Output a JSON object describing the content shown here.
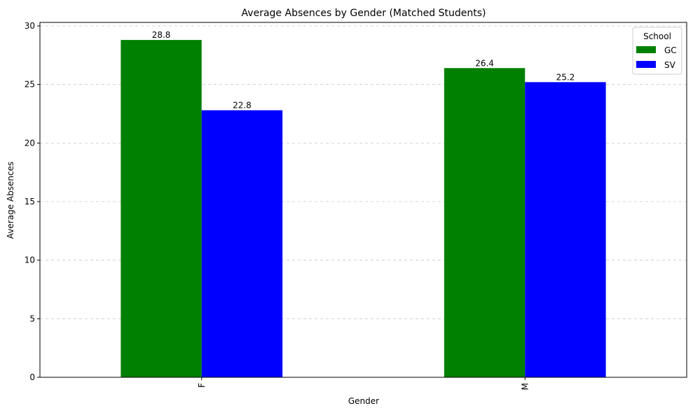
{
  "chart_data": {
    "type": "bar",
    "title": "Average Absences by Gender (Matched Students)",
    "xlabel": "Gender",
    "ylabel": "Average Absences",
    "categories": [
      "F",
      "M"
    ],
    "series": [
      {
        "name": "GC",
        "values": [
          28.8,
          26.4
        ],
        "color": "#008000"
      },
      {
        "name": "SV",
        "values": [
          22.8,
          25.2
        ],
        "color": "#0000ff"
      }
    ],
    "data_labels": [
      [
        "28.8",
        "26.4"
      ],
      [
        "22.8",
        "25.2"
      ]
    ],
    "ylim": [
      0,
      30.3
    ],
    "yticks": [
      0,
      5,
      10,
      15,
      20,
      25,
      30
    ],
    "grid": "y-dashed",
    "legend": {
      "title": "School",
      "placement": "top-right"
    }
  }
}
